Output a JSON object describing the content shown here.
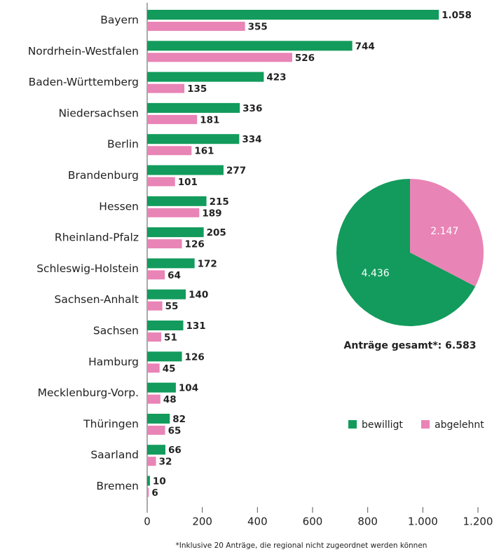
{
  "chart_data": [
    {
      "type": "hbar",
      "categories": [
        "Bayern",
        "Nordrhein-Westfalen",
        "Baden-Württemberg",
        "Niedersachsen",
        "Berlin",
        "Brandenburg",
        "Hessen",
        "Rheinland-Pfalz",
        "Schleswig-Holstein",
        "Sachsen-Anhalt",
        "Sachsen",
        "Hamburg",
        "Mecklenburg-Vorp.",
        "Thüringen",
        "Saarland",
        "Bremen"
      ],
      "series": [
        {
          "name": "bewilligt",
          "color": "#129b5c",
          "values": [
            1058,
            744,
            423,
            336,
            334,
            277,
            215,
            205,
            172,
            140,
            131,
            126,
            104,
            82,
            66,
            10
          ],
          "value_labels": [
            "1.058",
            "744",
            "423",
            "336",
            "334",
            "277",
            "215",
            "205",
            "172",
            "140",
            "131",
            "126",
            "104",
            "82",
            "66",
            "10"
          ]
        },
        {
          "name": "abgelehnt",
          "color": "#e984b6",
          "values": [
            355,
            526,
            135,
            181,
            161,
            101,
            189,
            126,
            64,
            55,
            51,
            45,
            48,
            65,
            32,
            6
          ]
        }
      ],
      "xlim": [
        0,
        1200
      ],
      "xticks": [
        0,
        200,
        400,
        600,
        800,
        {
          "value": 1000,
          "label": "1.000"
        },
        {
          "value": 1200,
          "label": "1.200"
        }
      ],
      "footnote": "*Inklusive 20 Anträge, die regional nicht zugeordnet werden können"
    },
    {
      "type": "pie",
      "values": [
        4436,
        2147
      ],
      "value_labels": [
        "4.436",
        "2.147"
      ],
      "colors": [
        "#129b5c",
        "#e984b6"
      ],
      "title": "Anträge gesamt*: 6.583"
    }
  ]
}
